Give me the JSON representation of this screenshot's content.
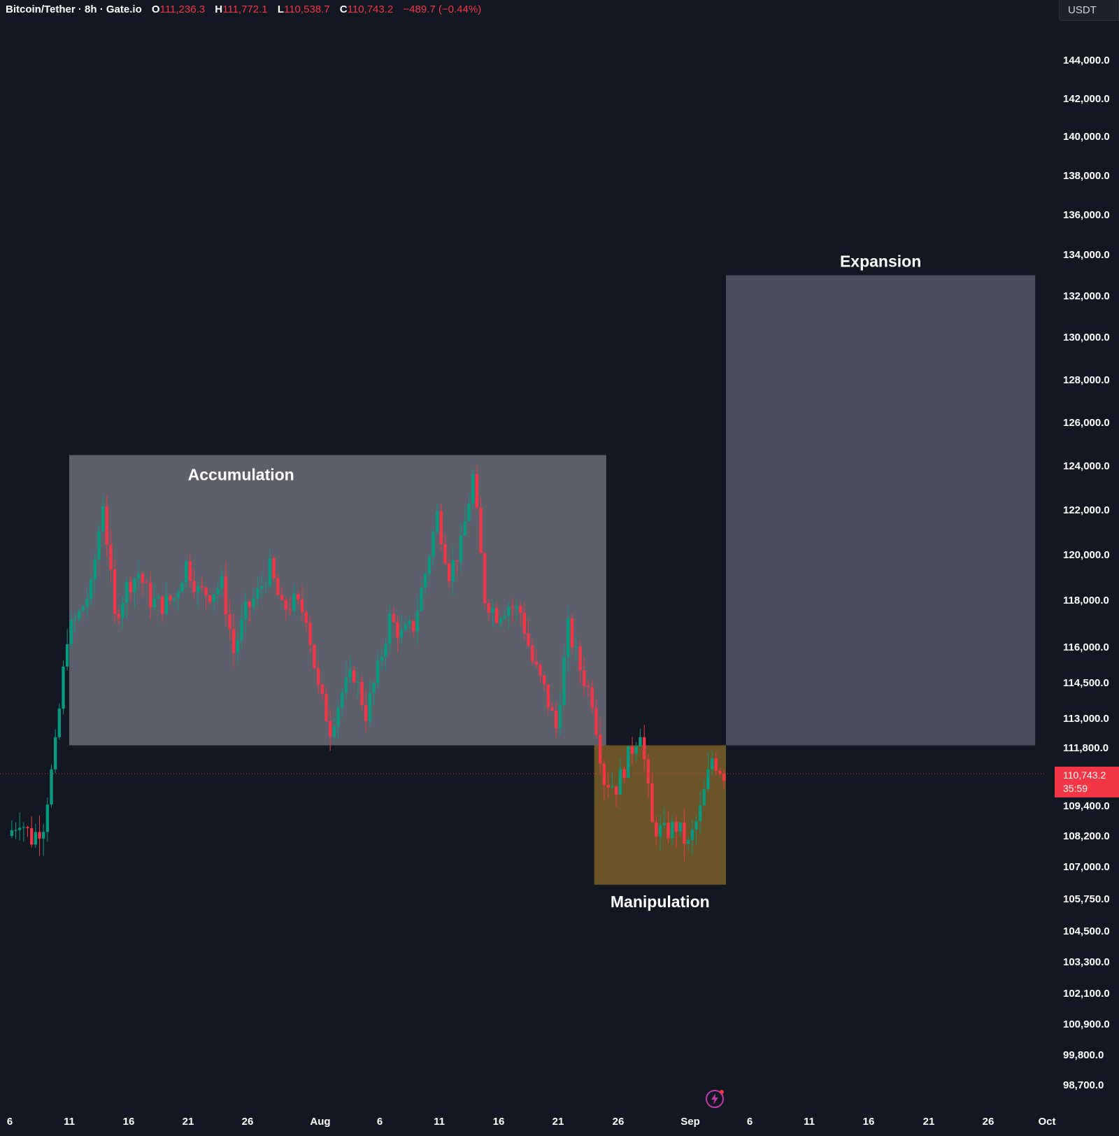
{
  "header": {
    "symbol": "Bitcoin/Tether · 8h · Gate.io",
    "open_label": "O",
    "open": "111,236.3",
    "high_label": "H",
    "high": "111,772.1",
    "low_label": "L",
    "low": "110,538.7",
    "close_label": "C",
    "close": "110,743.2",
    "change": "−489.7 (−0.44%)"
  },
  "currency": "USDT",
  "price_tag": {
    "price": "110,743.2",
    "countdown": "35:59"
  },
  "icons": {
    "flash": "flash-icon"
  },
  "colors": {
    "background": "#131722",
    "up": "#089981",
    "down": "#f23645",
    "accumulation_zone": "#5d606b",
    "expansion_zone": "#4b4c5e",
    "manipulation_zone": "#6b5428",
    "axis_text": "#ffffff",
    "price_line": "#f23645"
  },
  "chart_data": {
    "type": "candlestick",
    "title": "",
    "xlabel": "",
    "ylabel": "",
    "x_range": [
      "2025-07-06",
      "2025-10-01"
    ],
    "y_ticks": [
      {
        "value": 144000,
        "label": "144,000.0"
      },
      {
        "value": 142000,
        "label": "142,000.0"
      },
      {
        "value": 140000,
        "label": "140,000.0"
      },
      {
        "value": 138000,
        "label": "138,000.0"
      },
      {
        "value": 136000,
        "label": "136,000.0"
      },
      {
        "value": 134000,
        "label": "134,000.0"
      },
      {
        "value": 132000,
        "label": "132,000.0"
      },
      {
        "value": 130000,
        "label": "130,000.0"
      },
      {
        "value": 128000,
        "label": "128,000.0"
      },
      {
        "value": 126000,
        "label": "126,000.0"
      },
      {
        "value": 124000,
        "label": "124,000.0"
      },
      {
        "value": 122000,
        "label": "122,000.0"
      },
      {
        "value": 120000,
        "label": "120,000.0"
      },
      {
        "value": 118000,
        "label": "118,000.0"
      },
      {
        "value": 116000,
        "label": "116,000.0"
      },
      {
        "value": 114500,
        "label": "114,500.0"
      },
      {
        "value": 113000,
        "label": "113,000.0"
      },
      {
        "value": 111800,
        "label": "111,800.0"
      },
      {
        "value": 109400,
        "label": "109,400.0"
      },
      {
        "value": 108200,
        "label": "108,200.0"
      },
      {
        "value": 107000,
        "label": "107,000.0"
      },
      {
        "value": 105750,
        "label": "105,750.0"
      },
      {
        "value": 104500,
        "label": "104,500.0"
      },
      {
        "value": 103300,
        "label": "103,300.0"
      },
      {
        "value": 102100,
        "label": "102,100.0"
      },
      {
        "value": 100900,
        "label": "100,900.0"
      },
      {
        "value": 99800,
        "label": "99,800.0"
      },
      {
        "value": 98700,
        "label": "98,700.0"
      }
    ],
    "x_ticks": [
      {
        "date": "2025-07-06",
        "label": "6"
      },
      {
        "date": "2025-07-11",
        "label": "11"
      },
      {
        "date": "2025-07-16",
        "label": "16"
      },
      {
        "date": "2025-07-21",
        "label": "21"
      },
      {
        "date": "2025-07-26",
        "label": "26"
      },
      {
        "date": "2025-08-01",
        "label": "Aug"
      },
      {
        "date": "2025-08-06",
        "label": "6"
      },
      {
        "date": "2025-08-11",
        "label": "11"
      },
      {
        "date": "2025-08-16",
        "label": "16"
      },
      {
        "date": "2025-08-21",
        "label": "21"
      },
      {
        "date": "2025-08-26",
        "label": "26"
      },
      {
        "date": "2025-09-01",
        "label": "Sep"
      },
      {
        "date": "2025-09-06",
        "label": "6"
      },
      {
        "date": "2025-09-11",
        "label": "11"
      },
      {
        "date": "2025-09-16",
        "label": "16"
      },
      {
        "date": "2025-09-21",
        "label": "21"
      },
      {
        "date": "2025-09-26",
        "label": "26"
      },
      {
        "date": "2025-10-01",
        "label": "Oct"
      }
    ],
    "last_price": 110743.2,
    "zones": [
      {
        "label": "Accumulation",
        "start": "2025-07-11",
        "end": "2025-08-25",
        "low": 111900,
        "high": 124500
      },
      {
        "label": "Manipulation",
        "start": "2025-08-24",
        "end": "2025-09-04",
        "low": 106300,
        "high": 111900
      },
      {
        "label": "Expansion",
        "start": "2025-09-04",
        "end": "2025-09-30",
        "low": 111900,
        "high": 133000
      }
    ],
    "price_path": [
      {
        "date": "2025-07-06",
        "price": 108200
      },
      {
        "date": "2025-07-07",
        "price": 108900
      },
      {
        "date": "2025-07-08",
        "price": 108100
      },
      {
        "date": "2025-07-09",
        "price": 108700
      },
      {
        "date": "2025-07-10",
        "price": 111800
      },
      {
        "date": "2025-07-11",
        "price": 116500
      },
      {
        "date": "2025-07-12",
        "price": 117400
      },
      {
        "date": "2025-07-13",
        "price": 118500
      },
      {
        "date": "2025-07-14",
        "price": 122400
      },
      {
        "date": "2025-07-15",
        "price": 117200
      },
      {
        "date": "2025-07-16",
        "price": 118600
      },
      {
        "date": "2025-07-17",
        "price": 119200
      },
      {
        "date": "2025-07-18",
        "price": 118000
      },
      {
        "date": "2025-07-19",
        "price": 117800
      },
      {
        "date": "2025-07-20",
        "price": 118100
      },
      {
        "date": "2025-07-21",
        "price": 119600
      },
      {
        "date": "2025-07-22",
        "price": 118400
      },
      {
        "date": "2025-07-23",
        "price": 118300
      },
      {
        "date": "2025-07-24",
        "price": 118700
      },
      {
        "date": "2025-07-25",
        "price": 115800
      },
      {
        "date": "2025-07-26",
        "price": 117500
      },
      {
        "date": "2025-07-27",
        "price": 118300
      },
      {
        "date": "2025-07-28",
        "price": 119400
      },
      {
        "date": "2025-07-29",
        "price": 117600
      },
      {
        "date": "2025-07-30",
        "price": 117900
      },
      {
        "date": "2025-07-31",
        "price": 117400
      },
      {
        "date": "2025-08-01",
        "price": 114200
      },
      {
        "date": "2025-08-02",
        "price": 112600
      },
      {
        "date": "2025-08-03",
        "price": 114100
      },
      {
        "date": "2025-08-04",
        "price": 114900
      },
      {
        "date": "2025-08-05",
        "price": 113200
      },
      {
        "date": "2025-08-06",
        "price": 115000
      },
      {
        "date": "2025-08-07",
        "price": 117200
      },
      {
        "date": "2025-08-08",
        "price": 116500
      },
      {
        "date": "2025-08-09",
        "price": 116900
      },
      {
        "date": "2025-08-10",
        "price": 119200
      },
      {
        "date": "2025-08-11",
        "price": 121800
      },
      {
        "date": "2025-08-12",
        "price": 119200
      },
      {
        "date": "2025-08-13",
        "price": 120400
      },
      {
        "date": "2025-08-14",
        "price": 123500
      },
      {
        "date": "2025-08-15",
        "price": 118100
      },
      {
        "date": "2025-08-16",
        "price": 117400
      },
      {
        "date": "2025-08-17",
        "price": 117800
      },
      {
        "date": "2025-08-18",
        "price": 117500
      },
      {
        "date": "2025-08-19",
        "price": 115400
      },
      {
        "date": "2025-08-20",
        "price": 114200
      },
      {
        "date": "2025-08-21",
        "price": 112600
      },
      {
        "date": "2025-08-22",
        "price": 116800
      },
      {
        "date": "2025-08-23",
        "price": 115100
      },
      {
        "date": "2025-08-24",
        "price": 113800
      },
      {
        "date": "2025-08-25",
        "price": 110500
      },
      {
        "date": "2025-08-26",
        "price": 110200
      },
      {
        "date": "2025-08-27",
        "price": 111400
      },
      {
        "date": "2025-08-28",
        "price": 112600
      },
      {
        "date": "2025-08-29",
        "price": 108600
      },
      {
        "date": "2025-08-30",
        "price": 108300
      },
      {
        "date": "2025-08-31",
        "price": 108600
      },
      {
        "date": "2025-09-01",
        "price": 107800
      },
      {
        "date": "2025-09-02",
        "price": 109200
      },
      {
        "date": "2025-09-03",
        "price": 111400
      },
      {
        "date": "2025-09-04",
        "price": 110743
      }
    ]
  }
}
